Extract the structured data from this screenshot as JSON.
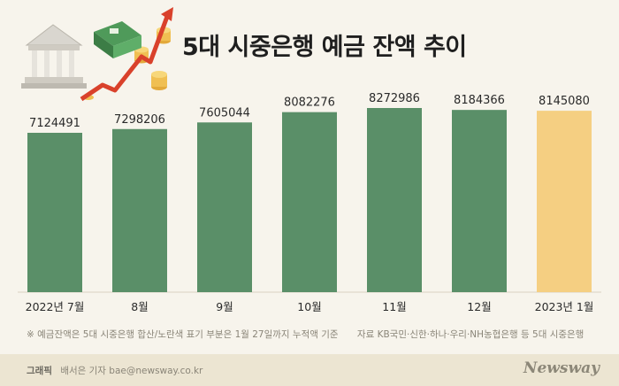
{
  "title": "5대 시중은행 예금 잔액 추이",
  "footnote": "※ 예금잔액은 5대 시중은행 합산/노란색 표기 부분은 1월 27일까지 누적액 기준",
  "source": "자료  KB국민·신한·하나·우리·NH농협은행 등 5대 시중은행",
  "credit_label": "그래픽",
  "credit_text": "배서은 기자 bae@newsway.co.kr",
  "brand": "Newsway",
  "colors": {
    "bar": "#5a8f68",
    "highlight": "#f5cf82",
    "background": "#f7f4ec",
    "footer": "#ece5d2"
  },
  "illustration_icons": [
    "bank-building-icon",
    "money-stack-icon",
    "coin-stack-icon",
    "trend-arrow-icon"
  ],
  "chart_data": {
    "type": "bar",
    "title": "5대 시중은행 예금 잔액 추이",
    "categories": [
      "2022년 7월",
      "8월",
      "9월",
      "10월",
      "11월",
      "12월",
      "2023년 1월"
    ],
    "values": [
      7124491,
      7298206,
      7605044,
      8082276,
      8272986,
      8184366,
      8145080
    ],
    "data_labels": [
      "7124491",
      "7298206",
      "7605044",
      "8082276",
      "8272986",
      "8184366",
      "8145080"
    ],
    "highlight_index": 6,
    "xlabel": "",
    "ylabel": "",
    "grid": false,
    "legend": "none"
  }
}
